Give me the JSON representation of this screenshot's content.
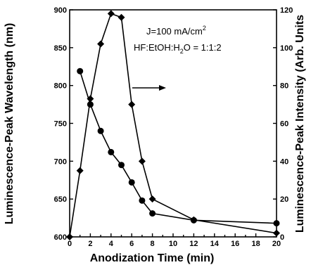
{
  "chart_data": {
    "type": "line",
    "xlabel": "Anodization Time (min)",
    "ylabel_left": "Luminescence-Peak Wavelength (nm)",
    "ylabel_right": "Luminescence-Peak Intensity (Arb. Units",
    "xlim": [
      0,
      20
    ],
    "ylim_left": [
      600,
      900
    ],
    "ylim_right": [
      0,
      120
    ],
    "x_ticks": [
      "0",
      "2",
      "4",
      "6",
      "8",
      "10",
      "12",
      "14",
      "16",
      "18",
      "20"
    ],
    "y_left_ticks": [
      "600",
      "650",
      "700",
      "750",
      "800",
      "850",
      "900"
    ],
    "y_right_ticks": [
      "0",
      "20",
      "40",
      "60",
      "80",
      "100",
      "120"
    ],
    "annotation_line1": "J=100 mA/cm",
    "annotation_sup": "2",
    "annotation_line2": "HF:EtOH:H",
    "annotation_sub": "2",
    "annotation_line2b": "O = 1:1:2",
    "arrow_direction": "right",
    "grid": false,
    "series": [
      {
        "axis": "left",
        "marker": "circle",
        "x": [
          1,
          2,
          3,
          4,
          5,
          6,
          7,
          8,
          12,
          20
        ],
        "y": [
          819,
          775,
          740,
          712,
          695,
          672,
          648,
          631,
          622,
          618
        ]
      },
      {
        "axis": "right",
        "marker": "diamond",
        "x": [
          0,
          1,
          2,
          3,
          4,
          5,
          6,
          7,
          8,
          12,
          20
        ],
        "y": [
          0,
          35,
          73,
          102,
          118,
          116,
          70,
          40,
          20,
          9,
          2
        ]
      }
    ]
  }
}
